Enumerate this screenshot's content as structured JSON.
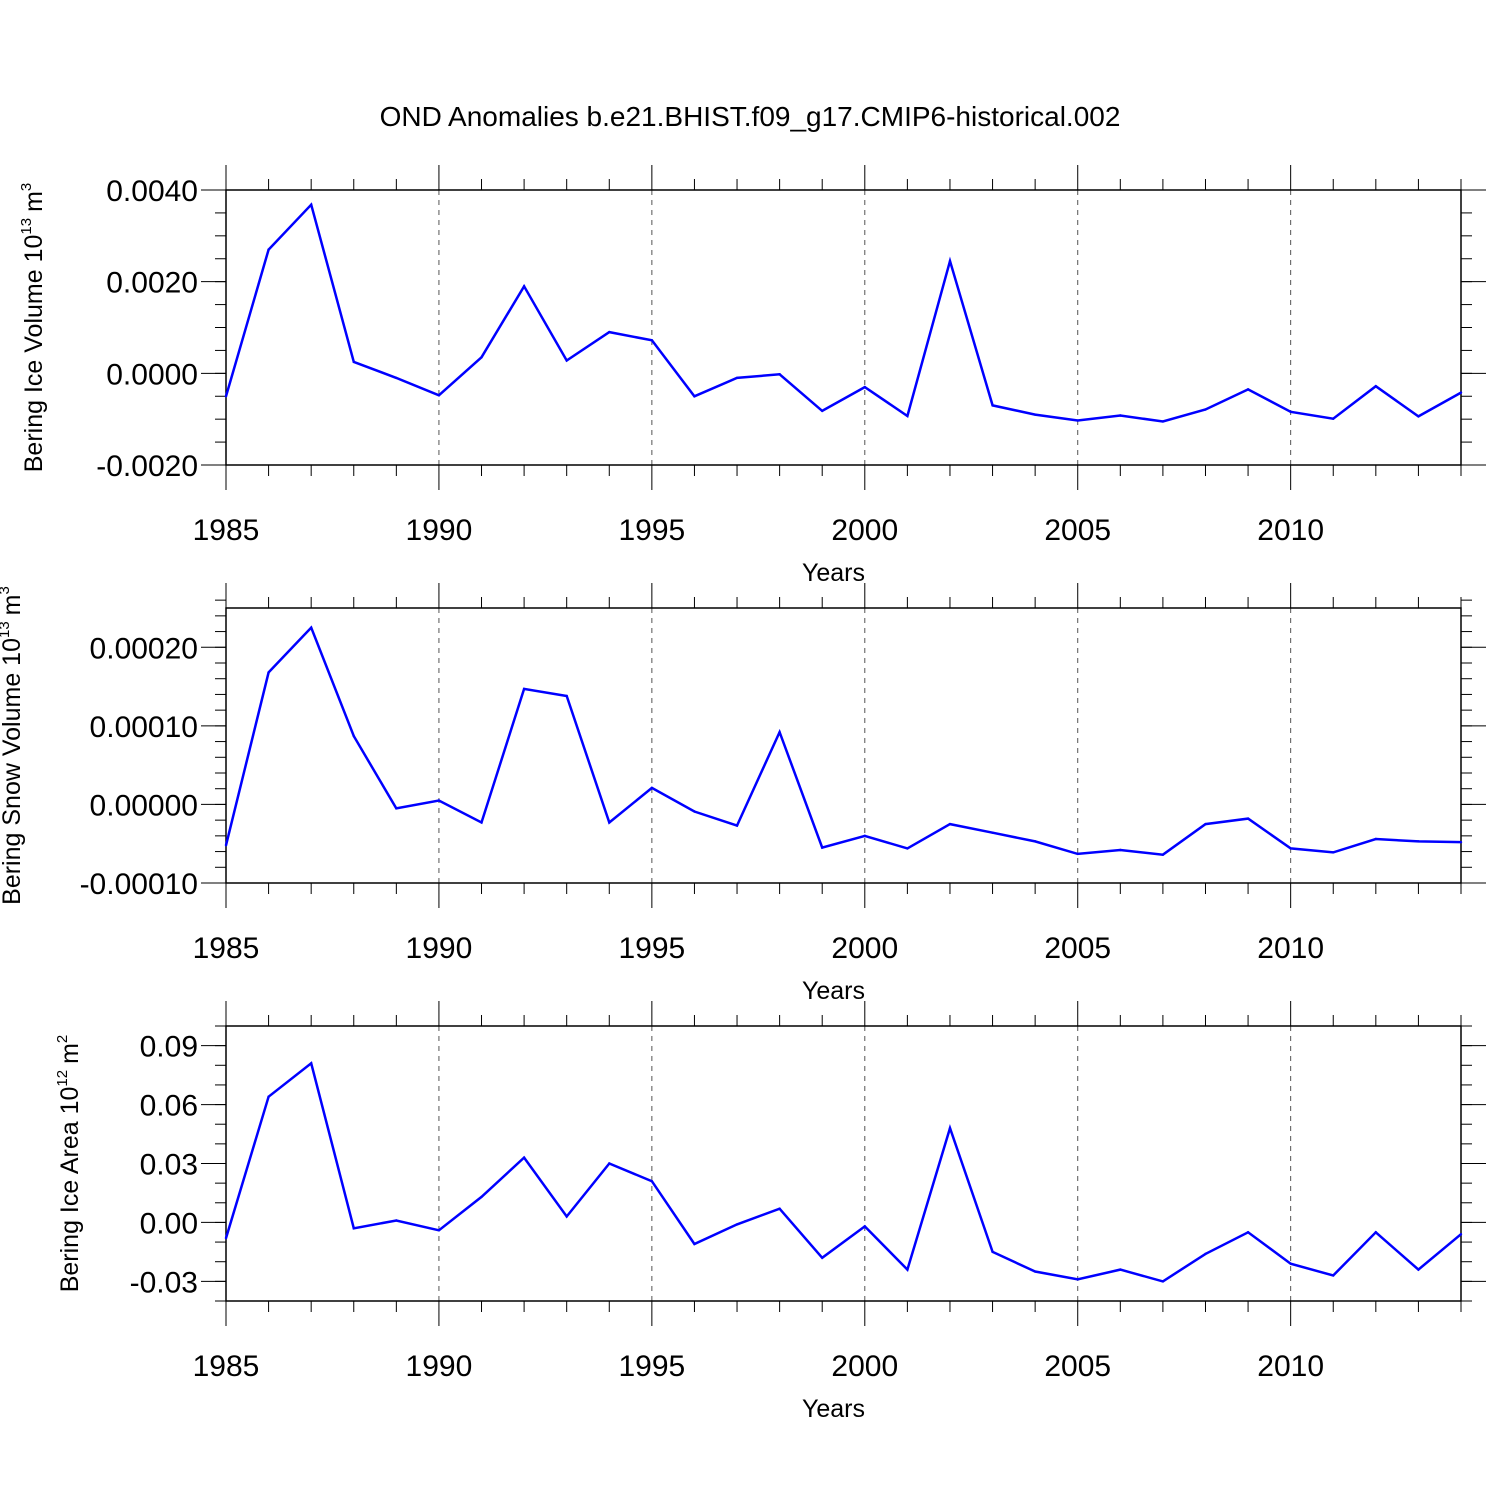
{
  "title": "OND Anomalies b.e21.BHIST.f09_g17.CMIP6-historical.002",
  "colors": {
    "line": "#0000ff",
    "axis": "#000000",
    "grid": "#555555",
    "background": "#ffffff"
  },
  "chart_data": [
    {
      "type": "line",
      "name": "ice-volume",
      "ylabel": "Bering Ice Volume 10",
      "ylabel_exp": "13",
      "ylabel_unit": "m",
      "ylabel_unit_exp": "3",
      "xlabel": "Years",
      "xlim": [
        1985,
        2014
      ],
      "ylim": [
        -0.002,
        0.004
      ],
      "x_ticks": [
        1985,
        1990,
        1995,
        2000,
        2005,
        2010
      ],
      "x_tick_labels": [
        "1985",
        "1990",
        "1995",
        "2000",
        "2005",
        "2010"
      ],
      "y_ticks": [
        -0.002,
        0.0,
        0.002,
        0.004
      ],
      "y_tick_labels": [
        "-0.0020",
        "0.0000",
        "0.0020",
        "0.0040"
      ],
      "y_minor_step": 0.0005,
      "grid": "dashed vertical at major x ticks",
      "x": [
        1985,
        1986,
        1987,
        1988,
        1989,
        1990,
        1991,
        1992,
        1993,
        1994,
        1995,
        1996,
        1997,
        1998,
        1999,
        2000,
        2001,
        2002,
        2003,
        2004,
        2005,
        2006,
        2007,
        2008,
        2009,
        2010,
        2011,
        2012,
        2013,
        2014
      ],
      "values": [
        -0.0005,
        0.0027,
        0.00368,
        0.00025,
        -0.0001,
        -0.00048,
        0.00035,
        0.0019,
        0.00028,
        0.0009,
        0.00072,
        -0.0005,
        -0.0001,
        -2e-05,
        -0.00082,
        -0.0003,
        -0.00093,
        0.00245,
        -0.0007,
        -0.0009,
        -0.00103,
        -0.00092,
        -0.00105,
        -0.00079,
        -0.00035,
        -0.00084,
        -0.00099,
        -0.00028,
        -0.00094,
        -0.00042
      ]
    },
    {
      "type": "line",
      "name": "snow-volume",
      "ylabel": "Bering Snow Volume 10",
      "ylabel_exp": "13",
      "ylabel_unit": "m",
      "ylabel_unit_exp": "3",
      "xlabel": "Years",
      "xlim": [
        1985,
        2014
      ],
      "ylim": [
        -0.0001,
        0.00025
      ],
      "x_ticks": [
        1985,
        1990,
        1995,
        2000,
        2005,
        2010
      ],
      "x_tick_labels": [
        "1985",
        "1990",
        "1995",
        "2000",
        "2005",
        "2010"
      ],
      "y_ticks": [
        -0.0001,
        0.0,
        0.0001,
        0.0002
      ],
      "y_tick_labels": [
        "-0.00010",
        "0.00000",
        "0.00010",
        "0.00020"
      ],
      "y_minor_step": 2e-05,
      "grid": "dashed vertical at major x ticks",
      "x": [
        1985,
        1986,
        1987,
        1988,
        1989,
        1990,
        1991,
        1992,
        1993,
        1994,
        1995,
        1996,
        1997,
        1998,
        1999,
        2000,
        2001,
        2002,
        2003,
        2004,
        2005,
        2006,
        2007,
        2008,
        2009,
        2010,
        2011,
        2012,
        2013,
        2014
      ],
      "values": [
        -5.2e-05,
        0.000168,
        0.000225,
        8.7e-05,
        -5e-06,
        5e-06,
        -2.3e-05,
        0.000147,
        0.000138,
        -2.3e-05,
        2.1e-05,
        -9e-06,
        -2.7e-05,
        9.2e-05,
        -5.5e-05,
        -4e-05,
        -5.6e-05,
        -2.5e-05,
        -3.6e-05,
        -4.7e-05,
        -6.3e-05,
        -5.8e-05,
        -6.4e-05,
        -2.5e-05,
        -1.8e-05,
        -5.6e-05,
        -6.1e-05,
        -4.4e-05,
        -4.7e-05,
        -4.8e-05
      ]
    },
    {
      "type": "line",
      "name": "ice-area",
      "ylabel": "Bering Ice Area 10",
      "ylabel_exp": "12",
      "ylabel_unit": "m",
      "ylabel_unit_exp": "2",
      "xlabel": "Years",
      "xlim": [
        1985,
        2014
      ],
      "ylim": [
        -0.04,
        0.1
      ],
      "x_ticks": [
        1985,
        1990,
        1995,
        2000,
        2005,
        2010
      ],
      "x_tick_labels": [
        "1985",
        "1990",
        "1995",
        "2000",
        "2005",
        "2010"
      ],
      "y_ticks": [
        -0.03,
        0.0,
        0.03,
        0.06,
        0.09
      ],
      "y_tick_labels": [
        "-0.03",
        "0.00",
        "0.03",
        "0.06",
        "0.09"
      ],
      "y_minor_step": 0.01,
      "grid": "dashed vertical at major x ticks",
      "x": [
        1985,
        1986,
        1987,
        1988,
        1989,
        1990,
        1991,
        1992,
        1993,
        1994,
        1995,
        1996,
        1997,
        1998,
        1999,
        2000,
        2001,
        2002,
        2003,
        2004,
        2005,
        2006,
        2007,
        2008,
        2009,
        2010,
        2011,
        2012,
        2013,
        2014
      ],
      "values": [
        -0.008,
        0.064,
        0.081,
        -0.003,
        0.001,
        -0.004,
        0.013,
        0.033,
        0.003,
        0.03,
        0.021,
        -0.011,
        -0.001,
        0.007,
        -0.018,
        -0.002,
        -0.024,
        0.048,
        -0.015,
        -0.025,
        -0.029,
        -0.024,
        -0.03,
        -0.016,
        -0.005,
        -0.021,
        -0.027,
        -0.005,
        -0.024,
        -0.006
      ]
    }
  ]
}
